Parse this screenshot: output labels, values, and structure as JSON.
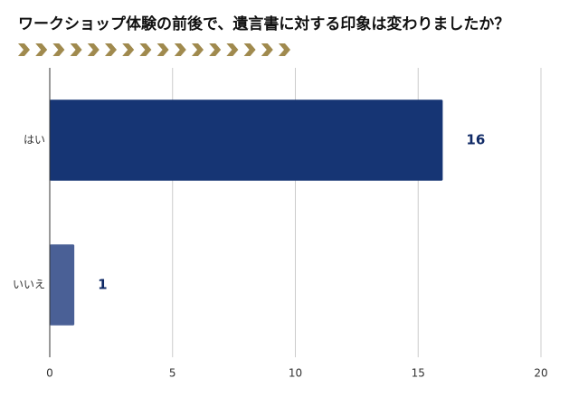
{
  "chart_data": {
    "type": "bar",
    "orientation": "horizontal",
    "title": "ワークショップ体験の前後で、遺言書に対する印象は変わりましたか？",
    "categories": [
      "はい",
      "いいえ"
    ],
    "values": [
      16,
      1
    ],
    "colors": [
      "#163574",
      "#4a6096"
    ],
    "xlim": [
      0,
      20
    ],
    "xticks": [
      0,
      5,
      10,
      15,
      20
    ],
    "grid": true
  }
}
